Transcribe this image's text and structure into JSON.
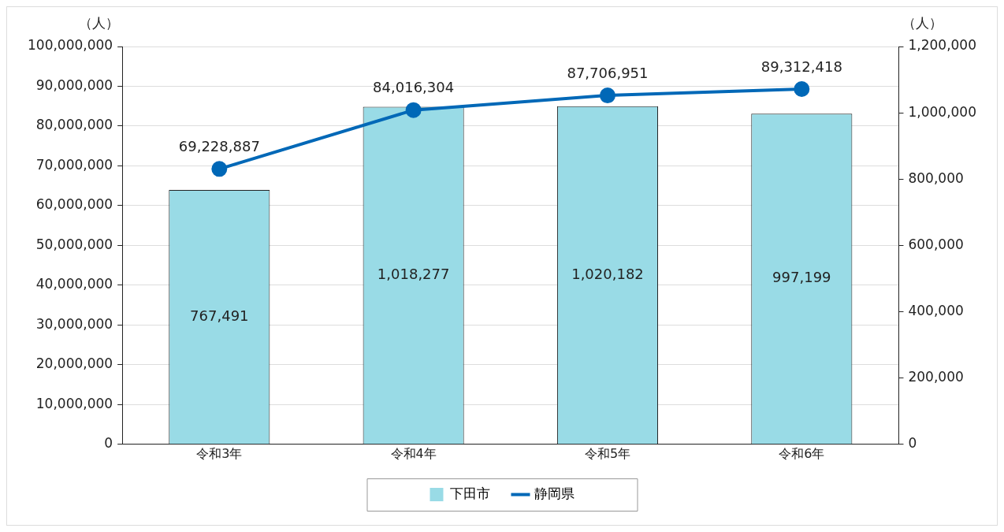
{
  "chart_data": {
    "type": "bar",
    "categories": [
      "令和3年",
      "令和4年",
      "令和5年",
      "令和6年"
    ],
    "series": [
      {
        "name": "下田市",
        "axis": "y2",
        "color": "#99dbe6",
        "values": [
          767491,
          1018277,
          1020182,
          997199
        ],
        "value_labels": [
          "767,491",
          "1,018,277",
          "1,020,182",
          "997,199"
        ]
      },
      {
        "name": "静岡県",
        "type": "line",
        "axis": "y",
        "color": "#0068b7",
        "marker": "circle",
        "values": [
          69228887,
          84016304,
          87706951,
          89312418
        ],
        "value_labels": [
          "69,228,887",
          "84,016,304",
          "87,706,951",
          "89,312,418"
        ]
      }
    ],
    "ylabel": "（人）",
    "y2label": "（人）",
    "ylim": [
      0,
      100000000
    ],
    "yticks": [
      {
        "value": 0,
        "label": "0"
      },
      {
        "value": 10000000,
        "label": "10,000,000"
      },
      {
        "value": 20000000,
        "label": "20,000,000"
      },
      {
        "value": 30000000,
        "label": "30,000,000"
      },
      {
        "value": 40000000,
        "label": "40,000,000"
      },
      {
        "value": 50000000,
        "label": "50,000,000"
      },
      {
        "value": 60000000,
        "label": "60,000,000"
      },
      {
        "value": 70000000,
        "label": "70,000,000"
      },
      {
        "value": 80000000,
        "label": "80,000,000"
      },
      {
        "value": 90000000,
        "label": "90,000,000"
      },
      {
        "value": 100000000,
        "label": "100,000,000"
      }
    ],
    "y2lim": [
      0,
      1200000
    ],
    "y2ticks": [
      {
        "value": 0,
        "label": "0"
      },
      {
        "value": 200000,
        "label": "200,000"
      },
      {
        "value": 400000,
        "label": "400,000"
      },
      {
        "value": 600000,
        "label": "600,000"
      },
      {
        "value": 800000,
        "label": "800,000"
      },
      {
        "value": 1000000,
        "label": "1,000,000"
      },
      {
        "value": 1200000,
        "label": "1,200,000"
      }
    ],
    "grid": "y",
    "legend": "bottom"
  }
}
